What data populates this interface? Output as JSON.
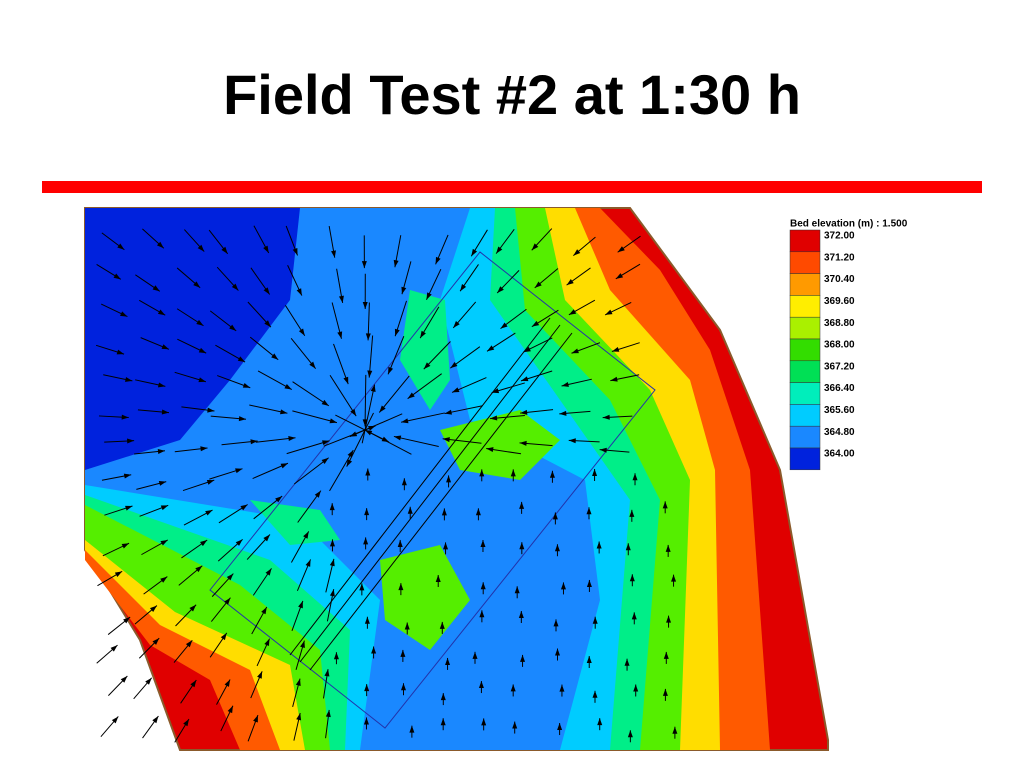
{
  "header": {
    "title": "Field Test #2 at 1:30 h"
  },
  "legend": {
    "title": "Bed elevation (m) : 1.500",
    "levels": [
      {
        "label": "372.00",
        "color": "#e00000"
      },
      {
        "label": "371.20",
        "color": "#ff4a00"
      },
      {
        "label": "370.40",
        "color": "#ff9a00"
      },
      {
        "label": "369.60",
        "color": "#ffee00"
      },
      {
        "label": "368.80",
        "color": "#aaf000"
      },
      {
        "label": "368.00",
        "color": "#33dd00"
      },
      {
        "label": "367.20",
        "color": "#00e055"
      },
      {
        "label": "366.40",
        "color": "#00eebb"
      },
      {
        "label": "365.60",
        "color": "#00ccff"
      },
      {
        "label": "364.80",
        "color": "#1a88ff"
      },
      {
        "label": "364.00",
        "color": "#0022dd"
      }
    ]
  }
}
